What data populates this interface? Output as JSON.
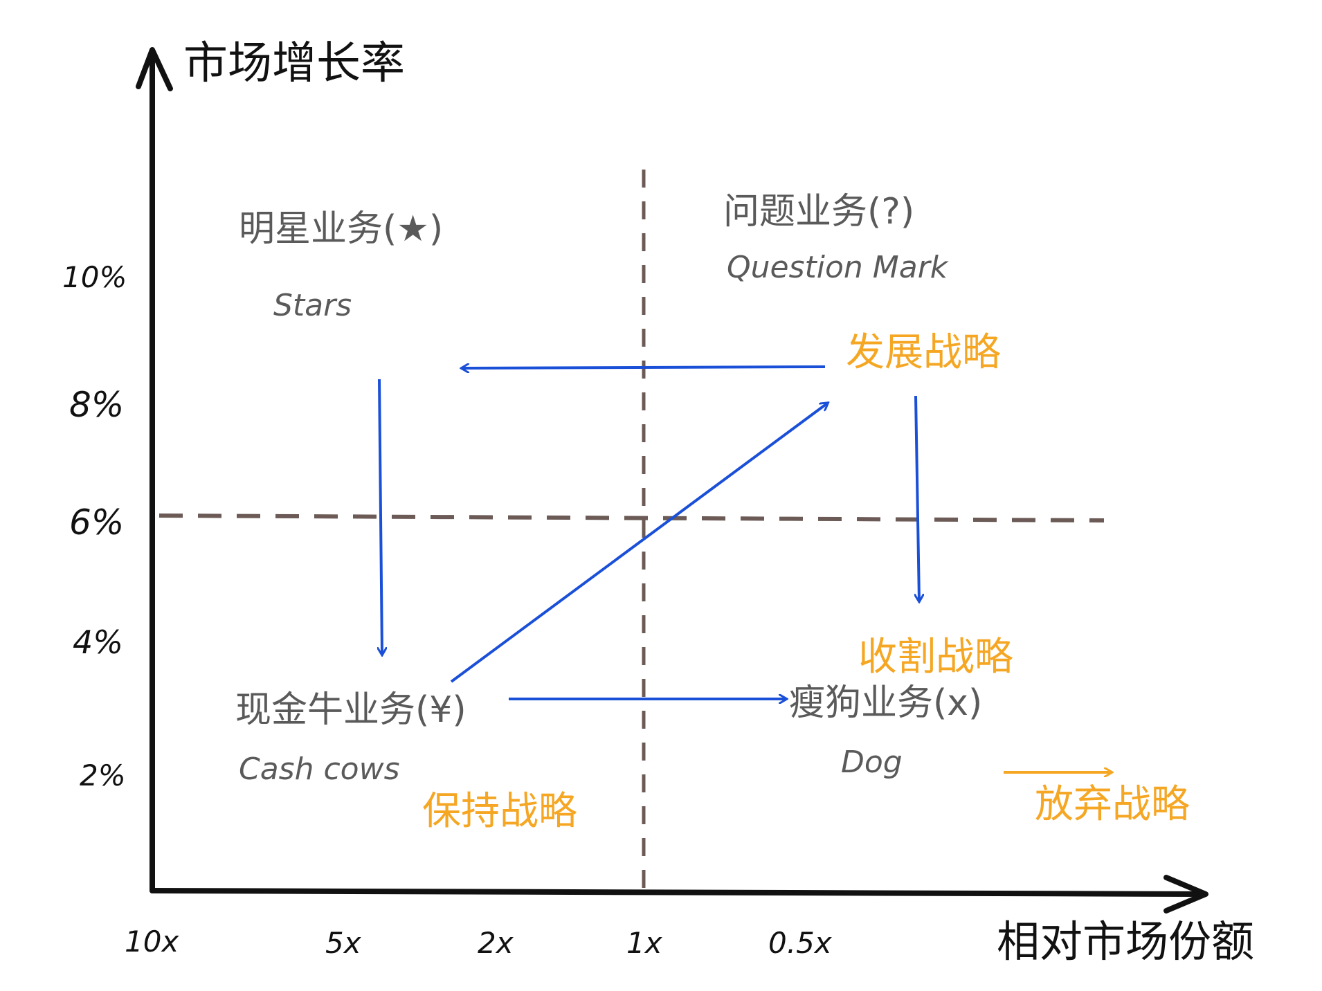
{
  "axes": {
    "y_title": "市场增长率",
    "x_title": "相对市场份额",
    "y_ticks": [
      "10%",
      "8%",
      "6%",
      "4%",
      "2%"
    ],
    "x_ticks": [
      "10x",
      "5x",
      "2x",
      "1x",
      "0.5x"
    ]
  },
  "quadrants": {
    "stars": {
      "zh": "明星业务(★)",
      "en": "Stars"
    },
    "question": {
      "zh": "问题业务(?)",
      "en": "Question Mark"
    },
    "cash": {
      "zh": "现金牛业务(¥)",
      "en": "Cash cows"
    },
    "dog": {
      "zh": "瘦狗业务(x)",
      "en": "Dog"
    }
  },
  "strategies": {
    "develop": "发展战略",
    "harvest": "收割战略",
    "hold": "保持战略",
    "divest": "放弃战略"
  },
  "colors": {
    "axis": "#111111",
    "divider": "#6b5a55",
    "arrow": "#1a4fd8",
    "strategy": "#f5a623",
    "quadrant_text": "#5a5a5a"
  }
}
